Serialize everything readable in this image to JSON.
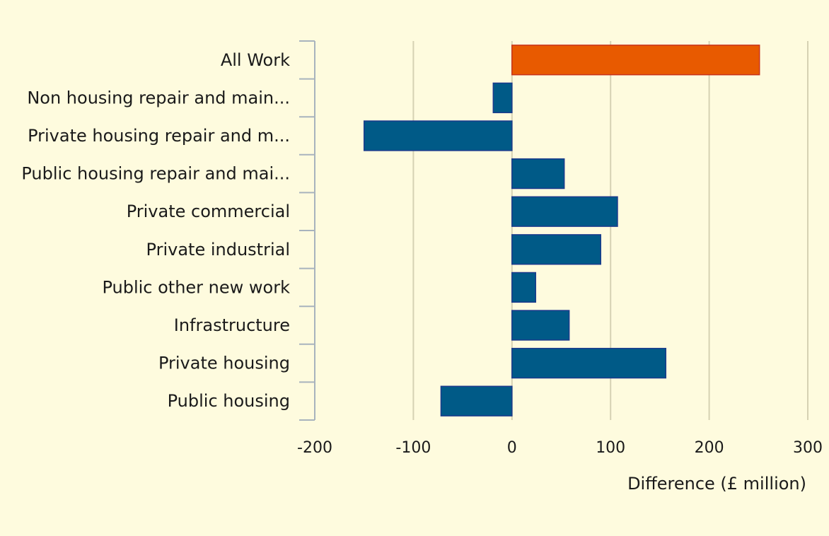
{
  "chart_data": {
    "type": "bar",
    "orientation": "horizontal",
    "categories": [
      "All Work",
      "Non housing repair and main...",
      "Private housing repair and m...",
      "Public housing repair and mai...",
      "Private commercial",
      "Private industrial",
      "Public other new work",
      "Infrastructure",
      "Private housing",
      "Public housing"
    ],
    "values": [
      251,
      -19,
      -150,
      53,
      107,
      90,
      24,
      58,
      156,
      -72
    ],
    "bar_colors": [
      "#e85a00",
      "#005a87",
      "#005a87",
      "#005a87",
      "#005a87",
      "#005a87",
      "#005a87",
      "#005a87",
      "#005a87",
      "#005a87"
    ],
    "x_ticks": [
      "-200",
      "-100",
      "0",
      "100",
      "200",
      "300"
    ],
    "x_tick_values": [
      -200,
      -100,
      0,
      100,
      200,
      300
    ],
    "xlabel": "Difference (£ million)",
    "xlim": [
      -200,
      300
    ],
    "grid": "vertical",
    "colors": {
      "background": "#fefbde",
      "highlight_bar": "#e85a00",
      "bar": "#005a87",
      "grid": "#d6d2b3",
      "axis": "#a8b3bd"
    }
  }
}
